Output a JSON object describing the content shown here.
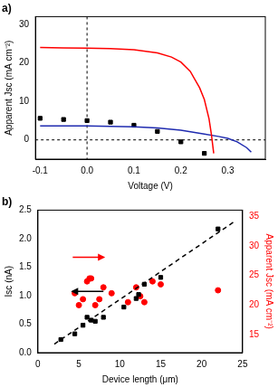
{
  "chart_data": [
    {
      "type": "line",
      "title": "a)",
      "x_label": "Voltage (V)",
      "y_label": "Apparent Jsc (mA cm⁻²)",
      "xlim": [
        -0.11,
        0.38
      ],
      "xticks": [
        -0.1,
        {
          "value": 0,
          "label": "0.0"
        },
        0.1,
        0.2,
        0.3
      ],
      "ylim": [
        -5,
        32
      ],
      "yticks": [
        0,
        10,
        20,
        30
      ],
      "grid": false,
      "series": [
        {
          "type": "line",
          "color": "#ff0000",
          "marker": "none",
          "line_style": "solid",
          "x": [
            -0.1,
            -0.05,
            0.0,
            0.05,
            0.1,
            0.15,
            0.18,
            0.2,
            0.22,
            0.24,
            0.25,
            0.26,
            0.265,
            0.27
          ],
          "values": [
            24.0,
            23.9,
            23.8,
            23.7,
            23.4,
            22.6,
            21.5,
            20.2,
            17.8,
            13.5,
            10.5,
            5.5,
            1.5,
            -3.5
          ]
        },
        {
          "type": "line",
          "color": "#1f2bb0",
          "marker": "none",
          "line_style": "solid",
          "x": [
            -0.1,
            -0.05,
            0.0,
            0.05,
            0.1,
            0.15,
            0.2,
            0.25,
            0.28,
            0.3,
            0.32,
            0.34,
            0.35
          ],
          "values": [
            3.6,
            3.6,
            3.6,
            3.5,
            3.4,
            3.1,
            2.5,
            1.5,
            0.9,
            0.4,
            -0.5,
            -2.0,
            -3.2
          ]
        },
        {
          "type": "scatter",
          "color": "#000000",
          "marker": "square",
          "line_style": "none",
          "x": [
            -0.1,
            -0.05,
            0.0,
            0.05,
            0.1,
            0.15,
            0.2,
            0.25
          ],
          "values": [
            5.6,
            5.3,
            5.0,
            4.6,
            3.8,
            2.2,
            -0.5,
            -3.5
          ]
        }
      ]
    },
    {
      "type": "scatter",
      "title": "b)",
      "x_label": "Device length (μm)",
      "y_label": "Isc (nA)",
      "y2_label": "Apparent Jsc (mA cm⁻²)",
      "xlim": [
        0,
        25
      ],
      "xticks": [
        0,
        5,
        10,
        15,
        20,
        25
      ],
      "ylim": [
        0,
        2.5
      ],
      "yticks": [
        {
          "value": 0,
          "label": "0.0"
        },
        0.5,
        {
          "value": 1,
          "label": "1.0"
        },
        1.5,
        {
          "value": 2,
          "label": "2.0"
        },
        2.5
      ],
      "y2lim": [
        12,
        36
      ],
      "y2ticks": [
        15,
        20,
        25,
        30,
        35
      ],
      "grid": false,
      "series": [
        {
          "type": "scatter",
          "color": "#000000",
          "marker": "square",
          "line_style": "none",
          "x": [
            2.8,
            4.5,
            5.5,
            6.0,
            6.5,
            7.0,
            8.0,
            10.5,
            12.0,
            12.3,
            13.0,
            15.0,
            22.0
          ],
          "values": [
            0.23,
            0.33,
            0.48,
            0.62,
            0.57,
            0.55,
            0.62,
            0.8,
            0.95,
            1.02,
            1.2,
            1.32,
            2.17
          ]
        },
        {
          "type": "line",
          "color": "#000000",
          "marker": "none",
          "line_style": "dashed",
          "x": [
            2.0,
            24.0
          ],
          "values": [
            0.15,
            2.3
          ]
        },
        {
          "type": "scatter",
          "color": "#ff0000",
          "marker": "circle",
          "line_style": "none",
          "axis": "y2",
          "x": [
            4.5,
            5.0,
            5.5,
            6.0,
            6.3,
            6.5,
            7.0,
            7.5,
            8.0,
            9.0,
            11.0,
            12.0,
            12.5,
            13.0,
            14.0,
            15.0,
            22.0
          ],
          "values": [
            22.0,
            20.0,
            21.0,
            24.0,
            24.5,
            24.5,
            20.0,
            21.0,
            23.0,
            22.0,
            20.5,
            23.0,
            21.5,
            20.5,
            24.0,
            23.5,
            22.5
          ]
        }
      ]
    }
  ]
}
